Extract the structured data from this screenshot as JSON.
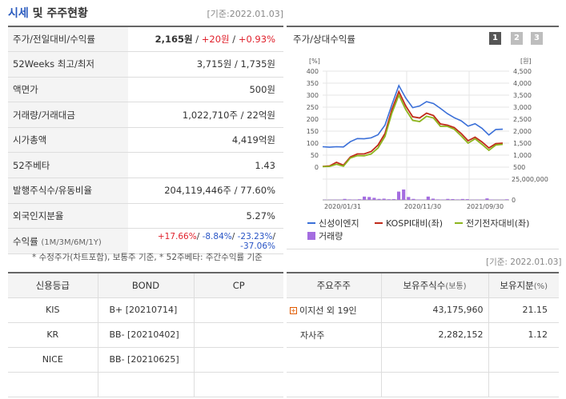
{
  "header": {
    "title_highlight": "시세",
    "title_rest": " 및 주주현황",
    "date": "[기준:2022.01.03]"
  },
  "info_rows": [
    {
      "label": "주가/전일대비/수익률",
      "v1": "2,165원",
      "sep1": " / ",
      "v2": "+20원",
      "sep2": " / ",
      "v3": "+0.93%"
    },
    {
      "label": "52Weeks 최고/최저",
      "value": "3,715원 / 1,735원"
    },
    {
      "label": "액면가",
      "value": "500원"
    },
    {
      "label": "거래량/거래대금",
      "value": "1,022,710주 / 22억원"
    },
    {
      "label": "시가총액",
      "value": "4,419억원"
    },
    {
      "label": "52주베타",
      "value": "1.43"
    },
    {
      "label": "발행주식수/유동비율",
      "value": "204,119,446주 / 77.60%"
    },
    {
      "label": "외국인지분율",
      "value": "5.27%"
    }
  ],
  "return_row": {
    "label": "수익률",
    "label_sub": "(1M/3M/6M/1Y)",
    "r1": "+17.66%",
    "r2": "-8.84%",
    "r3": "-23.23%",
    "r4": "-37.06%",
    "sep": "/ "
  },
  "note": "* 수정주가(차트포함), 보통주 기준, * 52주베타: 주간수익률 기준",
  "date2": "[기준: 2022.01.03]",
  "chart": {
    "title": "주가/상대수익률",
    "pages": [
      "1",
      "2",
      "3"
    ],
    "left_unit": "[%]",
    "right_unit": "[원]",
    "legend": {
      "l1": "신성이엔지",
      "l2": "KOSPI대비(좌)",
      "l3": "전기전자대비(좌)",
      "l4": "거래량"
    }
  },
  "chart_data": {
    "type": "line",
    "left_axis": {
      "ticks": [
        "400",
        "350",
        "300",
        "250",
        "200",
        "150",
        "100",
        "50",
        "0"
      ],
      "range": [
        0,
        400
      ]
    },
    "right_axis": {
      "ticks": [
        "4,500",
        "4,000",
        "3,500",
        "3,000",
        "2,500",
        "2,000",
        "1,500",
        "1,000",
        "500"
      ],
      "range": [
        500,
        4500
      ]
    },
    "volume_axis": {
      "ticks": [
        "25,000,000",
        "0"
      ],
      "range": [
        0,
        25000000
      ]
    },
    "x_labels": [
      "2020/01/31",
      "2020/11/30",
      "2021/09/30"
    ],
    "series": [
      {
        "name": "신성이엔지",
        "color": "#3a6fd8",
        "values": [
          1350,
          1330,
          1350,
          1340,
          1560,
          1690,
          1680,
          1720,
          1850,
          2250,
          3100,
          3900,
          3380,
          2980,
          3050,
          3230,
          3150,
          2950,
          2730,
          2560,
          2430,
          2210,
          2310,
          2120,
          1840,
          2070,
          2080
        ]
      },
      {
        "name": "KOSPI대비(좌)",
        "color": "#c02a1a",
        "values": [
          3,
          5,
          20,
          8,
          42,
          55,
          55,
          65,
          92,
          140,
          240,
          315,
          255,
          210,
          205,
          225,
          215,
          180,
          175,
          165,
          140,
          110,
          125,
          105,
          80,
          98,
          100
        ]
      },
      {
        "name": "전기전자대비(좌)",
        "color": "#8db51e",
        "values": [
          2,
          3,
          12,
          4,
          38,
          48,
          47,
          55,
          80,
          128,
          225,
          300,
          240,
          195,
          190,
          212,
          205,
          170,
          170,
          158,
          130,
          100,
          118,
          95,
          70,
          92,
          95
        ]
      }
    ],
    "volume": {
      "name": "거래량",
      "color": "#a46de0",
      "values": [
        0.3,
        0.3,
        0.4,
        0.3,
        1.2,
        0.6,
        0.5,
        0.8,
        4,
        3.5,
        2.5,
        1.2,
        1.5,
        0.8,
        1,
        10,
        12.5,
        3.5,
        1.2,
        0.5,
        0.4,
        4,
        1.5,
        0.6,
        0.5,
        1.2,
        1,
        0.6,
        1.1,
        0.9,
        0.3,
        0.4,
        0.3,
        1.8,
        0.4,
        0.3,
        0.3,
        0.7
      ]
    }
  },
  "credit": {
    "headers": [
      "신용등급",
      "BOND",
      "CP"
    ],
    "rows": [
      {
        "agency": "KIS",
        "bond": "B+  [20210714]",
        "cp": ""
      },
      {
        "agency": "KR",
        "bond": "BB-  [20210402]",
        "cp": ""
      },
      {
        "agency": "NICE",
        "bond": "BB-  [20210625]",
        "cp": ""
      },
      {
        "agency": "",
        "bond": "",
        "cp": ""
      }
    ]
  },
  "holders": {
    "headers": [
      "주요주주",
      "보유주식수",
      "(보통)",
      "보유지분",
      "(%)"
    ],
    "rows": [
      {
        "name": "이지선 외 19인",
        "shares": "43,175,960",
        "pct": "21.15",
        "expand": "+"
      },
      {
        "name": "자사주",
        "shares": "2,282,152",
        "pct": "1.12"
      },
      {
        "name": "",
        "shares": "",
        "pct": ""
      },
      {
        "name": "",
        "shares": "",
        "pct": ""
      }
    ]
  }
}
